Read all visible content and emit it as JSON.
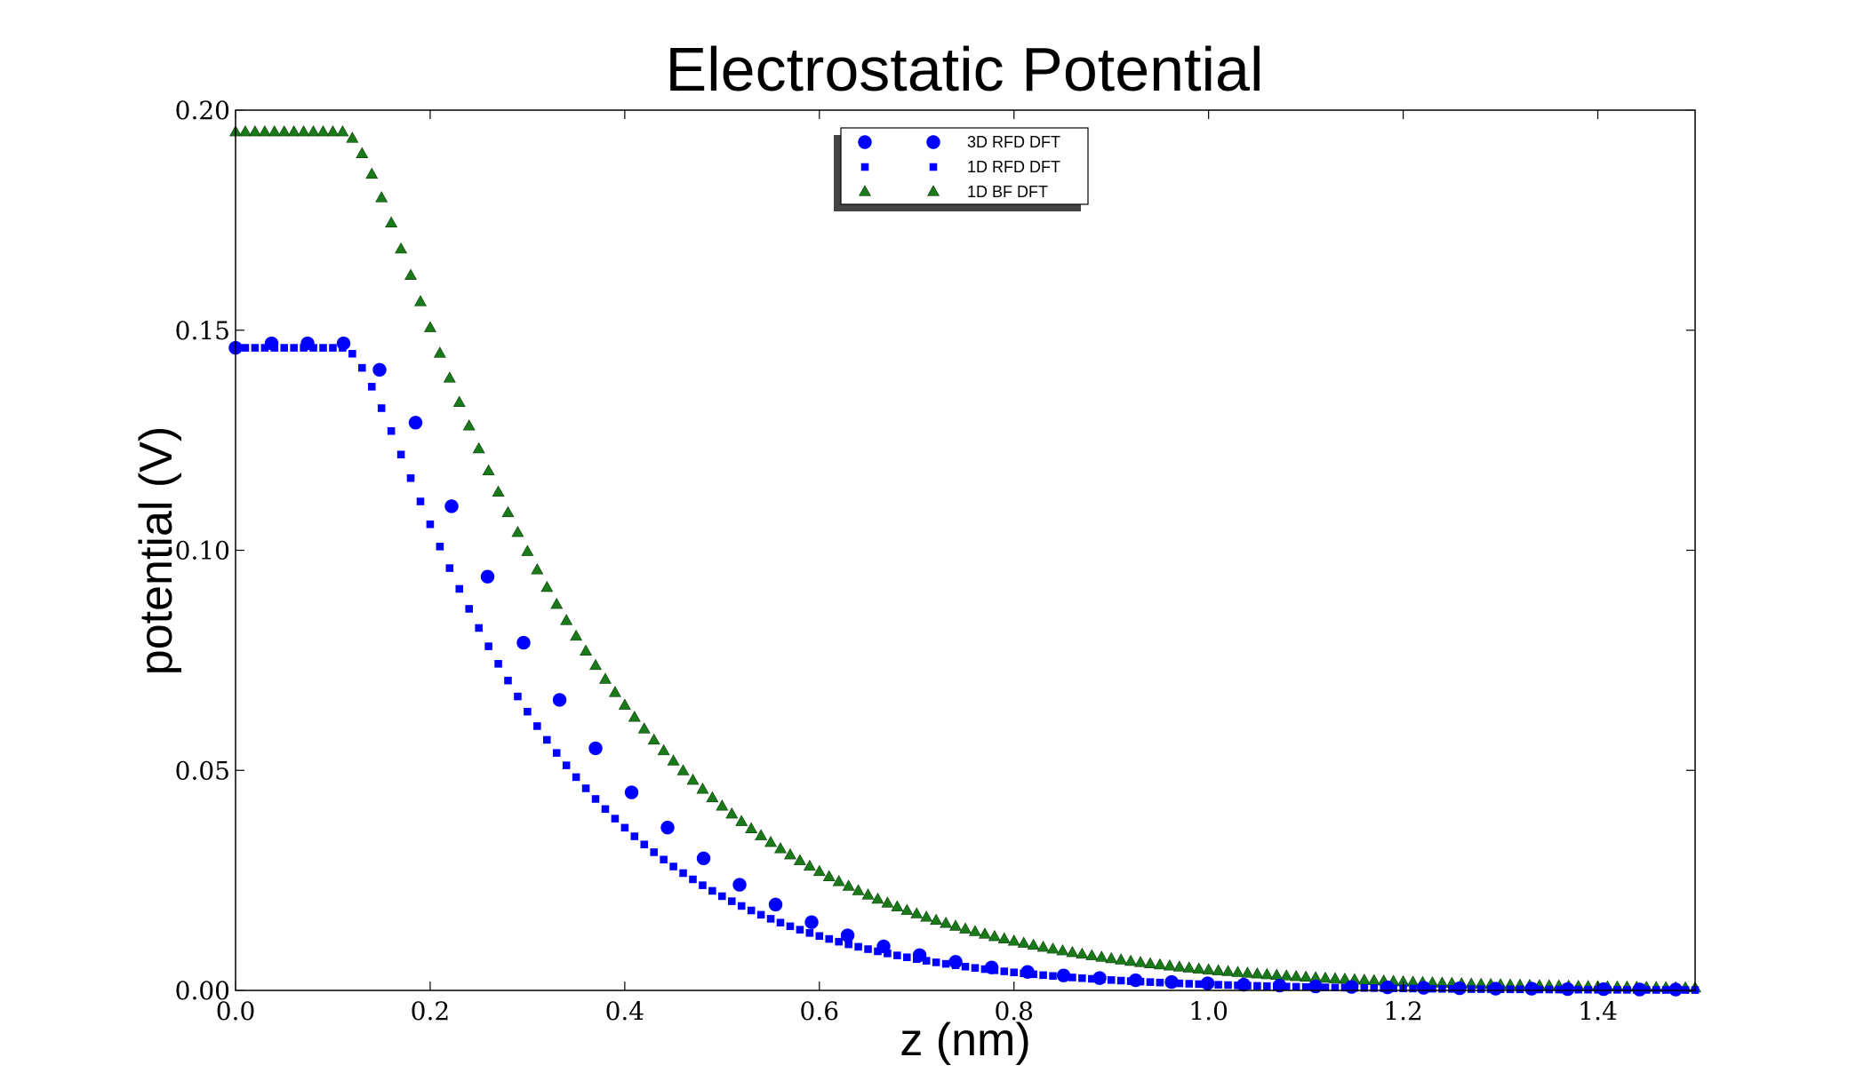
{
  "chart_data": {
    "type": "scatter",
    "title": "Electrostatic Potential",
    "xlabel": "z (nm)",
    "ylabel": "potential (V)",
    "xlim": [
      0.0,
      1.5
    ],
    "ylim": [
      0.0,
      0.2
    ],
    "xticks": [
      "0.0",
      "0.2",
      "0.4",
      "0.6",
      "0.8",
      "1.0",
      "1.2",
      "1.4"
    ],
    "yticks": [
      "0.00",
      "0.05",
      "0.10",
      "0.15",
      "0.20"
    ],
    "legend_position": "upper-center",
    "grid": false,
    "series": [
      {
        "name": "3D RFD DFT",
        "marker": "circle",
        "color": "#0000ff",
        "x": [
          0.0,
          0.037,
          0.074,
          0.111,
          0.148,
          0.185,
          0.222,
          0.259,
          0.296,
          0.333,
          0.37,
          0.407,
          0.444,
          0.481,
          0.518,
          0.555,
          0.592,
          0.629,
          0.666,
          0.703,
          0.74,
          0.777,
          0.814,
          0.851,
          0.888,
          0.925,
          0.962,
          0.999,
          1.036,
          1.073,
          1.11,
          1.147,
          1.184,
          1.221,
          1.258,
          1.295,
          1.332,
          1.369,
          1.406,
          1.443,
          1.48
        ],
        "y": [
          0.146,
          0.147,
          0.147,
          0.147,
          0.141,
          0.129,
          0.11,
          0.094,
          0.079,
          0.066,
          0.055,
          0.045,
          0.037,
          0.03,
          0.024,
          0.0195,
          0.0155,
          0.0125,
          0.01,
          0.008,
          0.0065,
          0.0052,
          0.0042,
          0.0034,
          0.0028,
          0.0023,
          0.0019,
          0.0016,
          0.0013,
          0.0011,
          0.0009,
          0.0008,
          0.0007,
          0.0006,
          0.0005,
          0.0004,
          0.0004,
          0.0003,
          0.0003,
          0.0002,
          0.0002
        ]
      },
      {
        "name": "1D RFD DFT",
        "marker": "square",
        "color": "#0000ff",
        "function": {
          "kind": "plateau-decay",
          "plateau": 0.146,
          "x0": 0.11,
          "amp": 0.146,
          "w": 0.095,
          "lambda": 0.18,
          "xmax": 1.5,
          "step": 0.01
        }
      },
      {
        "name": "1D BF DFT",
        "marker": "triangle",
        "color": "#1a7a1a",
        "function": {
          "kind": "plateau-decay",
          "plateau": 0.195,
          "x0": 0.11,
          "amp": 0.195,
          "w": 0.105,
          "lambda": 0.225,
          "xmax": 1.5,
          "step": 0.01
        }
      }
    ]
  }
}
